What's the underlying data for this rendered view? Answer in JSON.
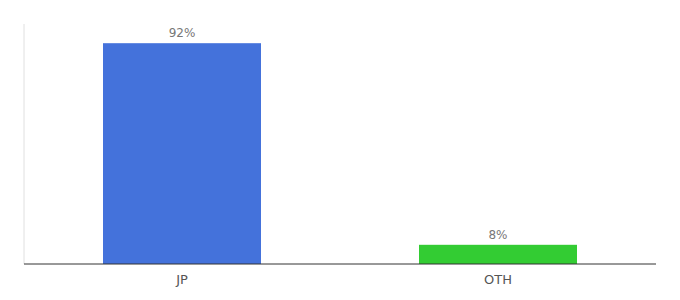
{
  "chart_data": {
    "type": "bar",
    "categories": [
      "JP",
      "OTH"
    ],
    "values": [
      92,
      8
    ],
    "value_labels": [
      "92%",
      "8%"
    ],
    "colors": [
      "#4472db",
      "#33cc33"
    ],
    "ylim": [
      0,
      100
    ],
    "data_labels": true,
    "tick_labels": "x"
  }
}
